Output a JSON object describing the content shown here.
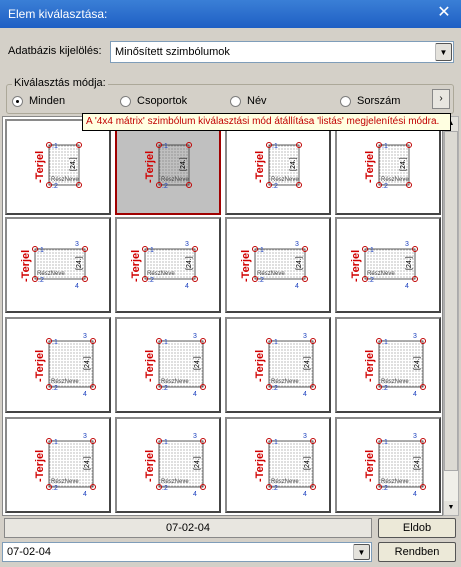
{
  "window": {
    "title": "Elem kiválasztása:"
  },
  "database": {
    "label": "Adatbázis kijelölés:",
    "value": "Minősített szimbólumok"
  },
  "selection_mode": {
    "legend": "Kiválasztás módja:",
    "options": [
      "Minden",
      "Csoportok",
      "Név",
      "Sorszám"
    ],
    "selected": "Minden"
  },
  "tooltip": "A '4x4 mátrix' szimbólum kiválasztási mód átállítása 'listás' megjelenítési módra.",
  "symbol_labels": {
    "terjel": "-Terjel",
    "reszneve": "RészNeve",
    "num_24": "[24.]",
    "n1": "1",
    "n2": "2",
    "n3": "3",
    "n4": "4",
    "p1": ":1",
    "p2": ":2",
    "p3": ":3",
    "p4": ":4"
  },
  "status_value": "07-02-04",
  "buttons": {
    "discard": "Eldob",
    "ok": "Rendben"
  },
  "bottom_combo": {
    "value": "07-02-04"
  }
}
